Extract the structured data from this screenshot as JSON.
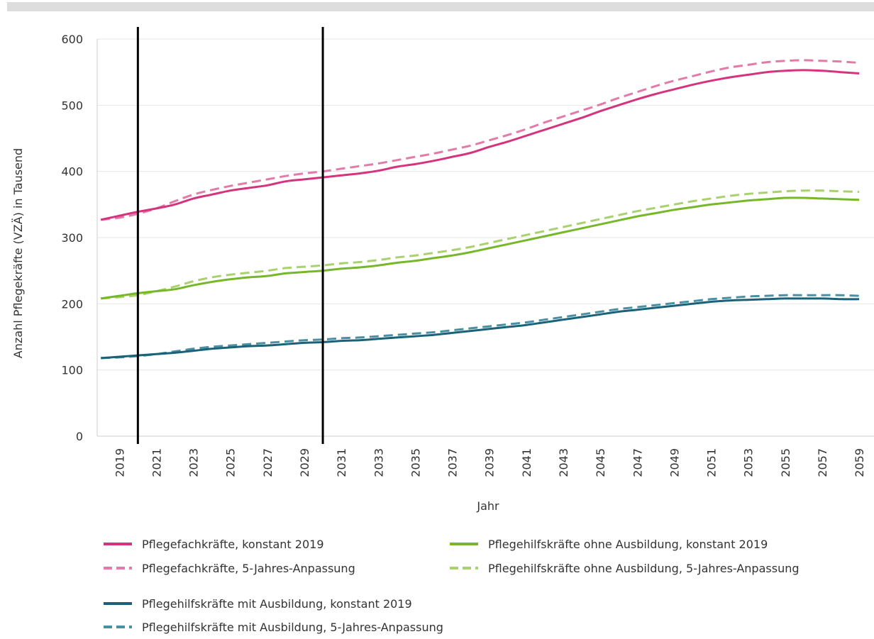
{
  "chart_data": {
    "type": "line",
    "xlabel": "Jahr",
    "ylabel": "Anzahl Pflegekräfte (VZÄ) in Tausend",
    "ylim": [
      0,
      600
    ],
    "yticks": [
      0,
      100,
      200,
      300,
      400,
      500,
      600
    ],
    "x_tick_labels": [
      "2019",
      "2021",
      "2023",
      "2025",
      "2027",
      "2029",
      "2031",
      "2033",
      "2035",
      "2037",
      "2039",
      "2041",
      "2043",
      "2045",
      "2047",
      "2049",
      "2051",
      "2053",
      "2055",
      "2057",
      "2059"
    ],
    "x": [
      2018,
      2019,
      2020,
      2021,
      2022,
      2023,
      2024,
      2025,
      2026,
      2027,
      2028,
      2029,
      2030,
      2031,
      2032,
      2033,
      2034,
      2035,
      2036,
      2037,
      2038,
      2039,
      2040,
      2041,
      2042,
      2043,
      2044,
      2045,
      2046,
      2047,
      2048,
      2049,
      2050,
      2051,
      2052,
      2053,
      2054,
      2055,
      2056,
      2057,
      2058,
      2059
    ],
    "grid": "horizontal",
    "vertical_markers": [
      2020,
      2030
    ],
    "legend_position": "bottom",
    "series": [
      {
        "name": "Pflegefachkräfte, konstant 2019",
        "color": "#d6337f",
        "dash": "solid",
        "values": [
          327,
          333,
          339,
          344,
          350,
          359,
          365,
          371,
          375,
          379,
          385,
          388,
          391,
          394,
          397,
          401,
          407,
          411,
          416,
          422,
          428,
          437,
          445,
          454,
          463,
          472,
          481,
          491,
          500,
          509,
          517,
          524,
          531,
          537,
          542,
          546,
          550,
          552,
          553,
          552,
          550,
          548
        ]
      },
      {
        "name": "Pflegefachkräfte, 5-Jahres-Anpassung",
        "color": "#e27ba8",
        "dash": "dashed",
        "values": [
          327,
          330,
          336,
          344,
          355,
          365,
          372,
          378,
          383,
          388,
          393,
          397,
          400,
          404,
          408,
          412,
          417,
          422,
          427,
          433,
          439,
          447,
          455,
          464,
          474,
          483,
          492,
          501,
          511,
          520,
          529,
          537,
          544,
          551,
          557,
          561,
          565,
          567,
          568,
          567,
          566,
          564
        ]
      },
      {
        "name": "Pflegehilfskräfte ohne Ausbildung, konstant 2019",
        "color": "#76b82a",
        "dash": "solid",
        "values": [
          208,
          212,
          216,
          219,
          222,
          228,
          233,
          237,
          240,
          242,
          246,
          248,
          250,
          253,
          255,
          258,
          262,
          265,
          269,
          273,
          278,
          284,
          290,
          296,
          302,
          308,
          314,
          320,
          326,
          332,
          337,
          342,
          346,
          350,
          353,
          356,
          358,
          360,
          360,
          359,
          358,
          357
        ]
      },
      {
        "name": "Pflegehilfskräfte ohne Ausbildung, 5-Jahres-Anpassung",
        "color": "#a9d16e",
        "dash": "dashed",
        "values": [
          208,
          210,
          213,
          219,
          226,
          234,
          240,
          244,
          247,
          250,
          254,
          256,
          258,
          261,
          263,
          266,
          270,
          273,
          277,
          281,
          286,
          292,
          298,
          304,
          310,
          316,
          322,
          328,
          334,
          340,
          345,
          350,
          355,
          359,
          363,
          366,
          368,
          370,
          371,
          371,
          370,
          369
        ]
      },
      {
        "name": "Pflegehilfskräfte mit Ausbildung, konstant 2019",
        "color": "#1a6277",
        "dash": "solid",
        "values": [
          118,
          120,
          122,
          124,
          126,
          129,
          132,
          134,
          136,
          137,
          139,
          141,
          142,
          144,
          145,
          147,
          149,
          151,
          153,
          156,
          159,
          162,
          165,
          168,
          172,
          176,
          180,
          184,
          188,
          191,
          194,
          197,
          200,
          203,
          205,
          206,
          207,
          208,
          208,
          208,
          207,
          207
        ]
      },
      {
        "name": "Pflegehilfskräfte mit Ausbildung, 5-Jahres-Anpassung",
        "color": "#4b8fa3",
        "dash": "dashed",
        "values": [
          118,
          119,
          121,
          124,
          128,
          132,
          135,
          137,
          139,
          141,
          143,
          145,
          146,
          148,
          149,
          151,
          153,
          155,
          157,
          160,
          163,
          166,
          169,
          172,
          176,
          180,
          184,
          188,
          192,
          195,
          198,
          201,
          204,
          207,
          209,
          211,
          212,
          213,
          213,
          213,
          213,
          212
        ]
      }
    ]
  }
}
